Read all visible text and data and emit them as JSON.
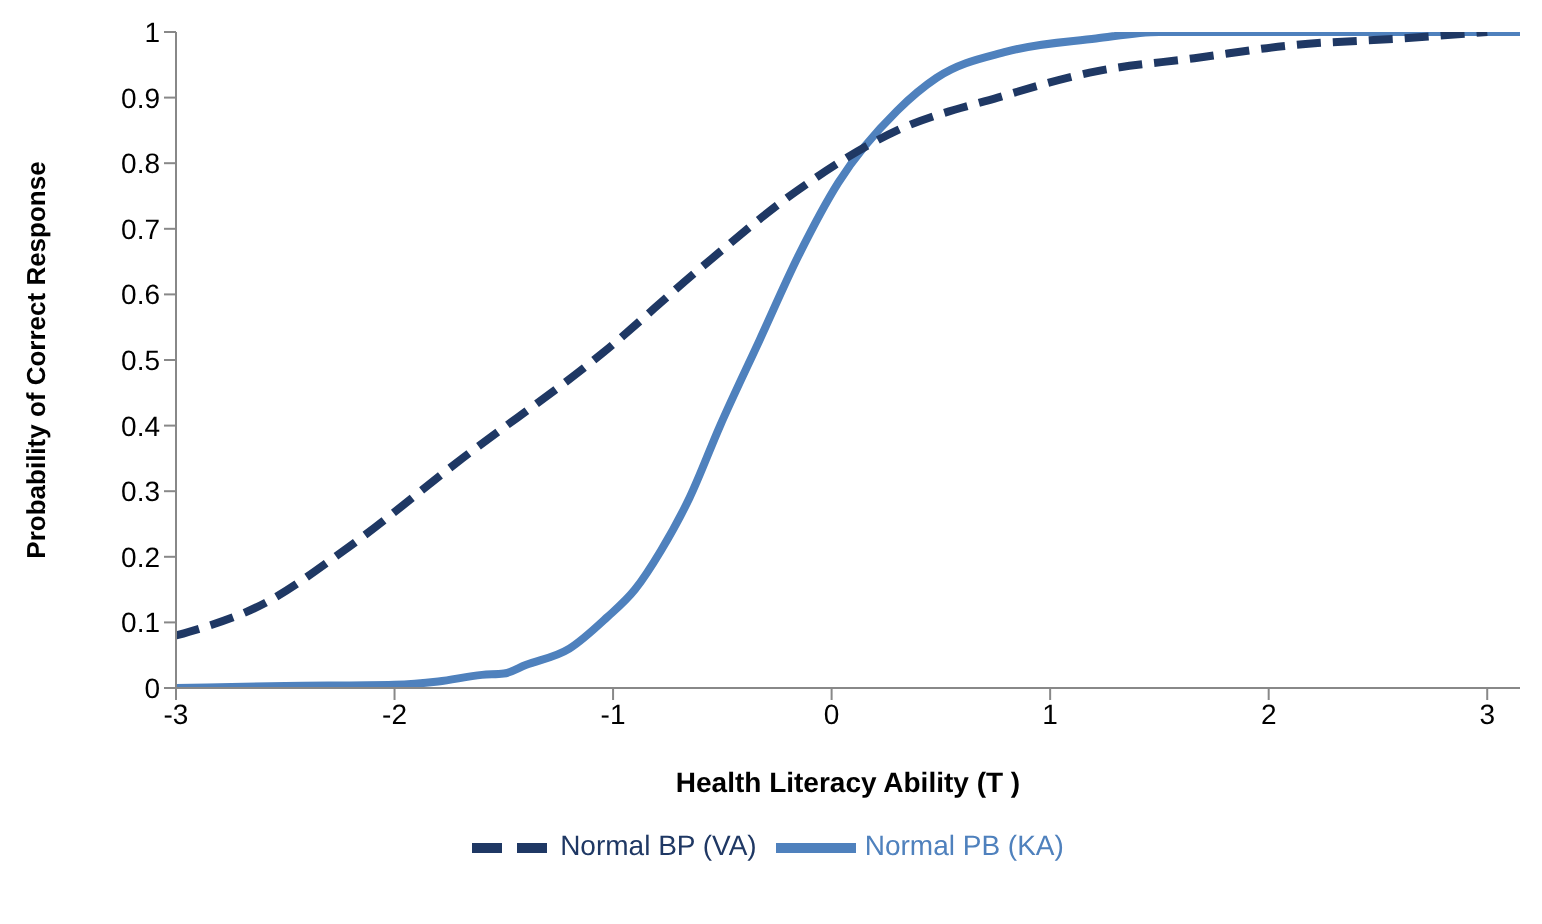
{
  "chart_data": {
    "type": "line",
    "xlabel": "Health Literacy Ability (T )",
    "ylabel": "Probability of Correct Response",
    "xlim": [
      -3,
      3.15
    ],
    "xticks": [
      -3,
      -2,
      -1,
      0,
      1,
      2,
      3
    ],
    "ylim": [
      0,
      1
    ],
    "yticks": [
      0,
      0.1,
      0.2,
      0.3,
      0.4,
      0.5,
      0.6,
      0.7,
      0.8,
      0.9,
      1
    ],
    "legend": "bottom",
    "grid": false,
    "marker": "none",
    "series": [
      {
        "name": "Normal PB (KA)",
        "color": "#4f81bd",
        "line_style": "solid",
        "x": [
          -3,
          -2.5,
          -2,
          -1.8,
          -1.6,
          -1.5,
          -1.4,
          -1.2,
          -1.03,
          -0.9,
          -0.78,
          -0.65,
          -0.51,
          -0.33,
          -0.15,
          0.03,
          0.3,
          0.48,
          0.8,
          1.21,
          1.5,
          2,
          2.5,
          3,
          3.15
        ],
        "values": [
          0,
          0.003,
          0.005,
          0.01,
          0.02,
          0.022,
          0.035,
          0.06,
          0.107,
          0.15,
          0.21,
          0.29,
          0.4,
          0.53,
          0.66,
          0.77,
          0.88,
          0.93,
          0.97,
          0.99,
          1,
          1,
          1,
          1,
          1
        ]
      },
      {
        "name": "Normal BP (VA)",
        "color": "#1f3864",
        "line_style": "dashed",
        "x": [
          -3,
          -2.59,
          -2.23,
          -1.69,
          -1.05,
          -0.6,
          -0.15,
          0.3,
          0.76,
          1.21,
          1.66,
          2.11,
          2.6,
          3
        ],
        "values": [
          0.08,
          0.13,
          0.21,
          0.35,
          0.51,
          0.64,
          0.76,
          0.85,
          0.9,
          0.94,
          0.96,
          0.98,
          0.99,
          1
        ]
      }
    ]
  }
}
